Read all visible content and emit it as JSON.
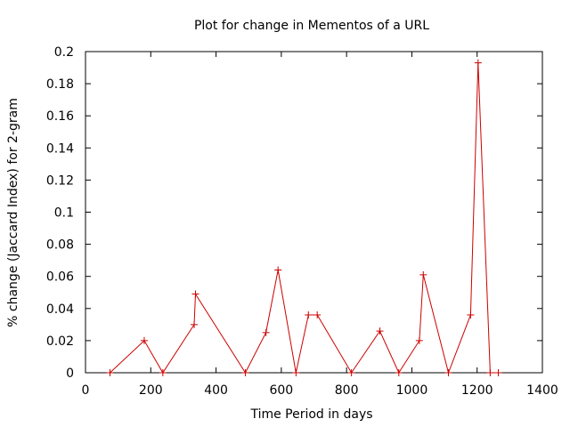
{
  "chart_data": {
    "type": "line",
    "title": "Plot for change in Mementos of a URL",
    "xlabel": "Time Period in days",
    "ylabel": "% change (Jaccard Index) for 2-gram",
    "xlim": [
      0,
      1400
    ],
    "ylim": [
      0,
      0.2
    ],
    "xticks": [
      "0",
      "200",
      "400",
      "600",
      "800",
      "1000",
      "1200",
      "1400"
    ],
    "yticks": [
      "0",
      "0.02",
      "0.04",
      "0.06",
      "0.08",
      "0.1",
      "0.12",
      "0.14",
      "0.16",
      "0.18",
      "0.2"
    ],
    "grid": false,
    "legend": "none",
    "color": "#cc0000",
    "x": [
      75,
      180,
      237,
      333,
      337,
      490,
      553,
      590,
      645,
      683,
      710,
      815,
      902,
      960,
      1023,
      1035,
      1112,
      1180,
      1203,
      1240,
      1265
    ],
    "y": [
      0,
      0.02,
      0,
      0.03,
      0.049,
      0,
      0.025,
      0.064,
      0,
      0.036,
      0.036,
      0,
      0.026,
      0,
      0.02,
      0.061,
      0,
      0.036,
      0.193,
      0,
      0
    ]
  }
}
